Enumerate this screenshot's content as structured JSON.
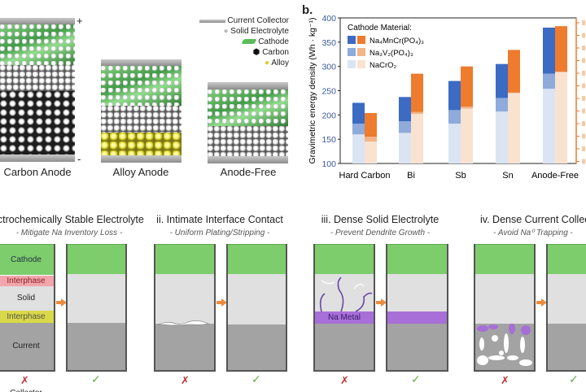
{
  "panel_a": {
    "cells": [
      {
        "label": "Carbon Anode",
        "plus": "+",
        "minus": "-"
      },
      {
        "label": "Alloy Anode"
      },
      {
        "label": "Anode-Free"
      }
    ],
    "legend": [
      "Current Collector",
      "Solid Electrolyte",
      "Cathode",
      "Carbon",
      "Alloy"
    ]
  },
  "panel_b_label": "b.",
  "chart_data": {
    "type": "bar",
    "stacked": true,
    "ylabel": "Gravimetric energy density (Wh · kg⁻¹)",
    "ylim": [
      100,
      400
    ],
    "yticks": [
      100,
      150,
      200,
      250,
      300,
      350,
      400
    ],
    "categories": [
      "Hard Carbon",
      "Bi",
      "Sb",
      "Sn",
      "Anode-Free"
    ],
    "legend_title": "Cathode Material:",
    "legend": [
      "Na₄MnCr(PO₄)₃",
      "Na₃V₂(PO₄)₃",
      "NaCrO₂"
    ],
    "legend_position": "top-left",
    "series": [
      {
        "group": "blue",
        "name": "NaCrO₂",
        "values": [
          160,
          163,
          182,
          207,
          254
        ],
        "color": "#dbe4f3"
      },
      {
        "group": "blue",
        "name": "Na₃V₂(PO₄)₃",
        "values": [
          182,
          187,
          210,
          235,
          285
        ],
        "color": "#8eabdc"
      },
      {
        "group": "blue",
        "name": "Na₄MnCr(PO₄)₃",
        "values": [
          225,
          237,
          270,
          305,
          380
        ],
        "color": "#3b6bc3"
      },
      {
        "group": "orange",
        "name": "NaCrO₂",
        "values": [
          145,
          202,
          213,
          245,
          288
        ],
        "color": "#fae2d0"
      },
      {
        "group": "orange",
        "name": "Na₃V₂(PO₄)₃",
        "values": [
          155,
          206,
          217,
          246,
          289
        ],
        "color": "#f3b488"
      },
      {
        "group": "orange",
        "name": "Na₄MnCr(PO₄)₃",
        "values": [
          204,
          285,
          300,
          334,
          383
        ],
        "color": "#ee7b2e"
      }
    ]
  },
  "panels": [
    {
      "title": "i. Electrochemically Stable Electrolyte",
      "subtitle": "- Mitigate Na Inventory Loss -",
      "layers": [
        "Cathode",
        "Interphase",
        "Solid Electrolyte",
        "Interphase",
        "Current Collector"
      ]
    },
    {
      "title": "ii. Intimate Interface Contact",
      "subtitle": "- Uniform Plating/Stripping -"
    },
    {
      "title": "iii. Dense Solid Electrolyte",
      "subtitle": "- Prevent Dendrite Growth -",
      "na_metal": "Na Metal"
    },
    {
      "title": "iv. Dense Current Collector",
      "subtitle": "- Avoid Na⁰ Trapping -"
    }
  ],
  "marks": {
    "bad": "✗",
    "good": "✓"
  }
}
